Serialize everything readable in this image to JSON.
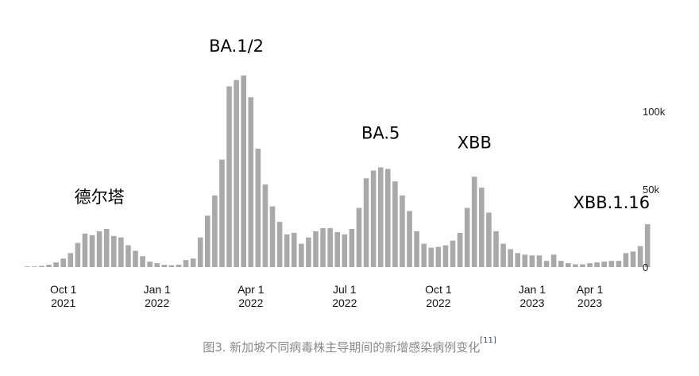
{
  "chart_data": {
    "type": "bar",
    "title": "",
    "xlabel": "",
    "ylabel": "",
    "ylim": [
      0,
      150000
    ],
    "y_ticks": [
      {
        "value": 0,
        "label": "0"
      },
      {
        "value": 50000,
        "label": "50k"
      },
      {
        "value": 100000,
        "label": "100k"
      }
    ],
    "x_ticks": [
      {
        "index": 5,
        "line1": "Oct 1",
        "line2": "2021"
      },
      {
        "index": 18,
        "line1": "Jan 1",
        "line2": "2022"
      },
      {
        "index": 31,
        "line1": "Apr 1",
        "line2": "2022"
      },
      {
        "index": 44,
        "line1": "Jul 1",
        "line2": "2022"
      },
      {
        "index": 57,
        "line1": "Oct 1",
        "line2": "2022"
      },
      {
        "index": 70,
        "line1": "Jan 1",
        "line2": "2023"
      },
      {
        "index": 78,
        "line1": "Apr 1",
        "line2": "2023"
      }
    ],
    "values": [
      200,
      400,
      800,
      1500,
      3000,
      5500,
      9000,
      15500,
      21500,
      20500,
      23000,
      24500,
      20000,
      19000,
      14000,
      10500,
      7000,
      3500,
      2500,
      1500,
      1200,
      1500,
      4500,
      5500,
      19000,
      33000,
      46000,
      69000,
      116000,
      120000,
      123000,
      109000,
      76000,
      53000,
      39000,
      29000,
      21000,
      22000,
      15000,
      19000,
      23000,
      25000,
      25000,
      22500,
      21000,
      24500,
      38000,
      57000,
      62000,
      64000,
      63000,
      55000,
      46000,
      36000,
      23000,
      15000,
      12500,
      13000,
      14000,
      17000,
      22000,
      38000,
      58000,
      51000,
      35000,
      23000,
      15000,
      11500,
      9000,
      8000,
      7500,
      7500,
      4000,
      8000,
      4000,
      2500,
      1800,
      1800,
      2500,
      3000,
      3500,
      4000,
      4000,
      9000,
      10000,
      13500,
      27500
    ],
    "annotations": [
      {
        "text": "德尔塔",
        "index": 10
      },
      {
        "text": "BA.1/2",
        "index": 29
      },
      {
        "text": "BA.5",
        "index": 49
      },
      {
        "text": "XBB",
        "index": 62
      },
      {
        "text": "XBB.1.16",
        "index": 81
      }
    ],
    "bar_color": "#a9a9a9",
    "grid": false,
    "legend": "none"
  },
  "caption": {
    "text": "图3. 新加坡不同病毒株主导期间的新增感染病例变化",
    "ref": "[11]"
  }
}
